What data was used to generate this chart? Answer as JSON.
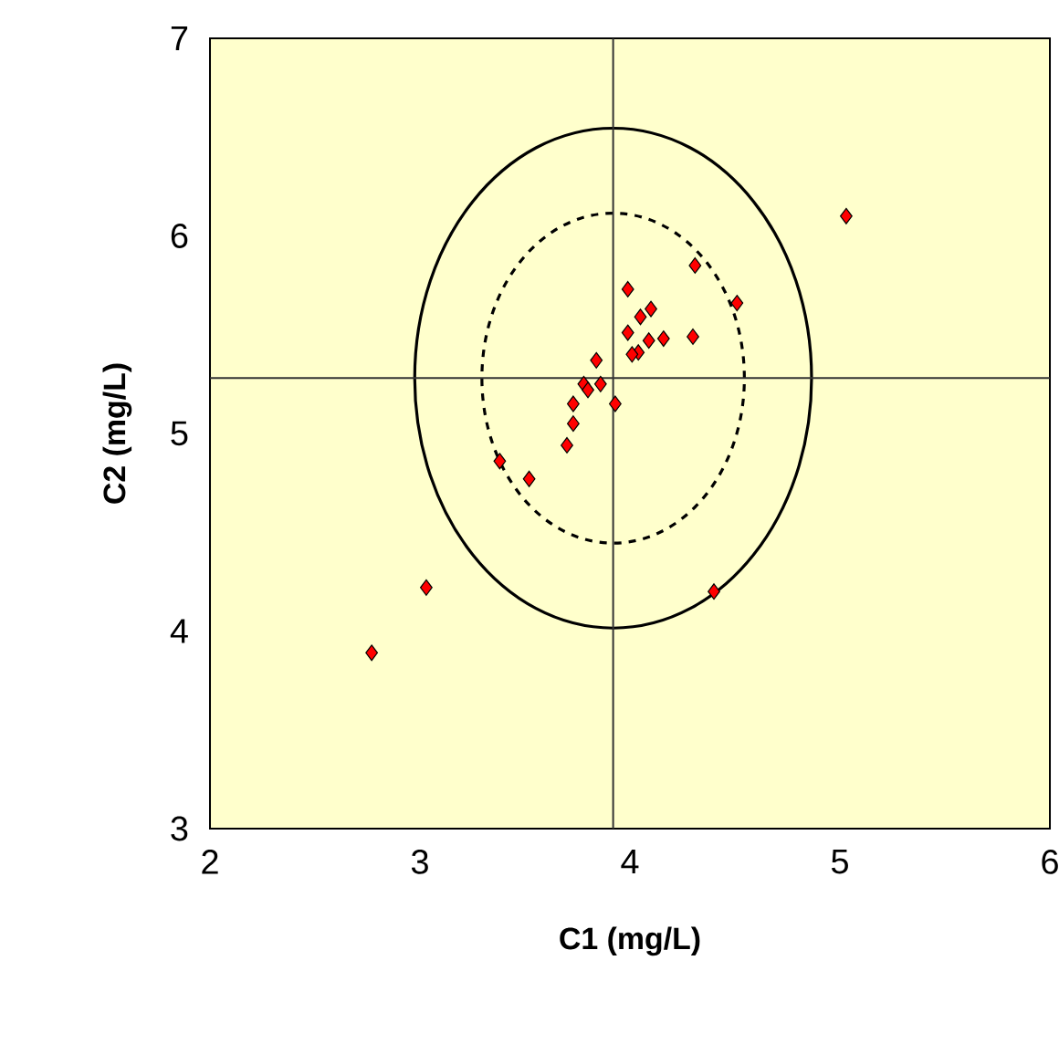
{
  "chart_data": {
    "type": "scatter",
    "xlabel": "C1 (mg/L)",
    "ylabel": "C2 (mg/L)",
    "xlim": [
      2,
      6
    ],
    "ylim": [
      3,
      7
    ],
    "xticks": [
      2,
      3,
      4,
      5,
      6
    ],
    "yticks": [
      3,
      4,
      5,
      6,
      7
    ],
    "grid": false,
    "marker": "diamond",
    "ref_lines": [
      {
        "axis": "x",
        "value": 3.92,
        "color": "#333333"
      },
      {
        "axis": "y",
        "value": 5.28,
        "color": "#333333"
      }
    ],
    "series": [
      {
        "type": "scatter",
        "color": "#ff0000",
        "x": [
          5.03,
          4.31,
          4.51,
          3.99,
          4.1,
          4.05,
          3.99,
          4.16,
          4.09,
          4.3,
          4.04,
          4.01,
          3.84,
          3.78,
          3.86,
          3.8,
          3.93,
          3.73,
          3.73,
          3.7,
          3.38,
          3.52,
          3.03,
          2.77,
          4.4
        ],
        "values": [
          6.1,
          5.85,
          5.66,
          5.73,
          5.63,
          5.59,
          5.51,
          5.48,
          5.47,
          5.49,
          5.41,
          5.4,
          5.37,
          5.25,
          5.25,
          5.22,
          5.15,
          5.15,
          5.05,
          4.94,
          4.86,
          4.77,
          4.22,
          3.89,
          4.2
        ]
      }
    ]
  }
}
